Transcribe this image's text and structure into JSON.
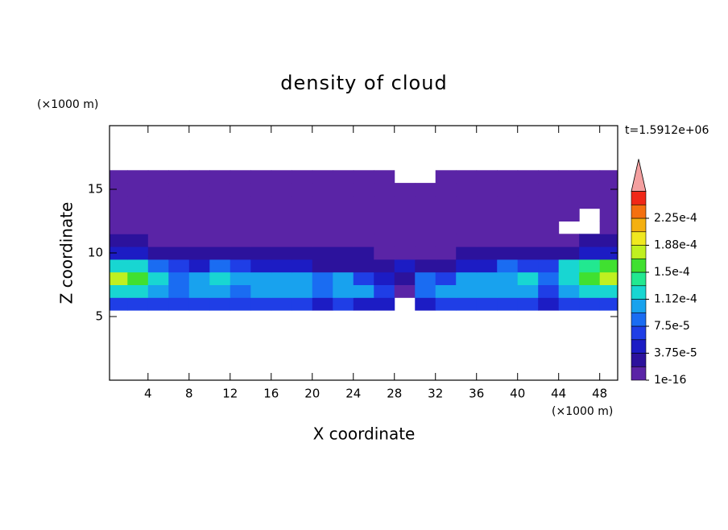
{
  "chart_data": {
    "type": "contour",
    "title": "density of cloud",
    "xlabel": "X coordinate",
    "ylabel": "Z coordinate",
    "x_unit": "(×1000 m)",
    "y_unit": "(×1000 m)",
    "annotation": "t=1.5912e+06",
    "xlim": [
      0.25,
      49.75
    ],
    "ylim": [
      0,
      20
    ],
    "xticks": [
      4,
      8,
      12,
      16,
      20,
      24,
      28,
      32,
      36,
      40,
      44,
      48
    ],
    "yticks": [
      5,
      10,
      15
    ],
    "x": [
      1,
      3,
      5,
      7,
      9,
      11,
      13,
      15,
      17,
      19,
      21,
      23,
      25,
      27,
      29,
      31,
      33,
      35,
      37,
      39,
      41,
      43,
      45,
      47,
      49
    ],
    "y": [
      6,
      7,
      8,
      9,
      10,
      11,
      12,
      13,
      14,
      15,
      16
    ],
    "z": [
      [
        7e-05,
        7e-05,
        6e-05,
        6e-05,
        6e-05,
        6e-05,
        6e-05,
        6e-05,
        6e-05,
        6e-05,
        5e-05,
        6e-05,
        5e-05,
        5e-05,
        null,
        5e-05,
        6e-05,
        6e-05,
        6e-05,
        6e-05,
        6e-05,
        5e-05,
        6e-05,
        7e-05,
        7e-05
      ],
      [
        0.00013,
        0.00012,
        0.0001,
        8e-05,
        0.0001,
        0.00011,
        9e-05,
        0.0001,
        0.00011,
        0.0001,
        9e-05,
        0.00011,
        0.0001,
        7e-05,
        1e-05,
        9e-05,
        0.0001,
        0.00011,
        0.0001,
        0.0001,
        0.00011,
        6e-05,
        0.00011,
        0.00012,
        0.00012
      ],
      [
        0.00017,
        0.00015,
        0.00012,
        9e-05,
        0.00011,
        0.00012,
        0.0001,
        0.00011,
        0.00011,
        0.0001,
        9e-05,
        0.0001,
        6e-05,
        5e-05,
        3e-05,
        8e-05,
        7e-05,
        0.0001,
        0.00011,
        0.00011,
        0.00012,
        8e-05,
        0.00013,
        0.00016,
        0.00017
      ],
      [
        0.00013,
        0.00012,
        8e-05,
        6e-05,
        5e-05,
        9e-05,
        6e-05,
        5e-05,
        4e-05,
        4e-05,
        3e-05,
        3e-05,
        3e-05,
        3e-05,
        4e-05,
        3e-05,
        3e-05,
        4e-05,
        5e-05,
        8e-05,
        6e-05,
        7e-05,
        0.00012,
        0.00014,
        0.00015
      ],
      [
        4e-05,
        4e-05,
        3e-05,
        3e-05,
        3e-05,
        3e-05,
        3e-05,
        3e-05,
        3e-05,
        3e-05,
        3e-05,
        3e-05,
        3e-05,
        1.5e-05,
        1.5e-05,
        1.5e-05,
        1.5e-05,
        3e-05,
        3e-05,
        3e-05,
        3e-05,
        3e-05,
        3e-05,
        4e-05,
        4e-05
      ],
      [
        2.5e-05,
        2.5e-05,
        1.5e-05,
        1.5e-05,
        1.5e-05,
        1.5e-05,
        1.5e-05,
        1.5e-05,
        1.5e-05,
        1.5e-05,
        1.5e-05,
        1.5e-05,
        1.5e-05,
        1.5e-05,
        1.5e-05,
        1.5e-05,
        1.5e-05,
        1.5e-05,
        1.5e-05,
        1.5e-05,
        1.5e-05,
        1.5e-05,
        1.5e-05,
        2.5e-05,
        2.5e-05
      ],
      [
        1.5e-05,
        1.5e-05,
        1.5e-05,
        1.5e-05,
        1.5e-05,
        1.5e-05,
        1.5e-05,
        1.5e-05,
        1.5e-05,
        1.5e-05,
        1.5e-05,
        1.5e-05,
        1.5e-05,
        1.5e-05,
        1.5e-05,
        1.5e-05,
        1.5e-05,
        1.5e-05,
        1.5e-05,
        1.5e-05,
        1.5e-05,
        1.5e-05,
        null,
        null,
        1.5e-05
      ],
      [
        1.5e-05,
        1.5e-05,
        1.5e-05,
        1.5e-05,
        1.5e-05,
        1.5e-05,
        1.5e-05,
        1.5e-05,
        1.5e-05,
        1.5e-05,
        1.5e-05,
        1.5e-05,
        1.5e-05,
        1.5e-05,
        1.5e-05,
        1.5e-05,
        1.5e-05,
        1.5e-05,
        1.5e-05,
        1.5e-05,
        1.5e-05,
        1.5e-05,
        1.5e-05,
        null,
        1.5e-05
      ],
      [
        1e-05,
        1e-05,
        1e-05,
        1e-05,
        1e-05,
        1e-05,
        1e-05,
        1e-05,
        1e-05,
        1e-05,
        1e-05,
        1e-05,
        1e-05,
        1e-05,
        1e-05,
        1e-05,
        1e-05,
        1e-05,
        1e-05,
        1e-05,
        1e-05,
        1e-05,
        1e-05,
        1e-05,
        1e-05
      ],
      [
        1e-05,
        1e-05,
        1e-05,
        1e-05,
        1e-05,
        1e-05,
        1e-05,
        1e-05,
        1e-05,
        1e-05,
        1e-05,
        1e-05,
        1e-05,
        1e-05,
        1e-05,
        1e-05,
        1e-05,
        1e-05,
        1e-05,
        1e-05,
        1e-05,
        1e-05,
        1e-05,
        1e-05,
        1e-05
      ],
      [
        5e-06,
        5e-06,
        5e-06,
        5e-06,
        5e-06,
        5e-06,
        5e-06,
        5e-06,
        5e-06,
        5e-06,
        5e-06,
        5e-06,
        5e-06,
        5e-06,
        null,
        null,
        5e-06,
        5e-06,
        5e-06,
        5e-06,
        5e-06,
        5e-06,
        5e-06,
        5e-06,
        5e-06
      ]
    ],
    "levels": [
      {
        "value": 1e-16,
        "label": "1e-16"
      },
      1.875e-05,
      {
        "value": 3.75e-05,
        "label": "3.75e-5"
      },
      5.625e-05,
      {
        "value": 7.5e-05,
        "label": "7.5e-5"
      },
      9.375e-05,
      {
        "value": 0.0001125,
        "label": "1.12e-4"
      },
      0.00013125,
      {
        "value": 0.00015,
        "label": "1.5e-4"
      },
      0.00016875,
      {
        "value": 0.0001875,
        "label": "1.88e-4"
      },
      0.00020625,
      {
        "value": 0.000225,
        "label": "2.25e-4"
      },
      0.00024375
    ],
    "colors": [
      "#5a24a6",
      "#2c129c",
      "#1c1cc4",
      "#1f3ee6",
      "#1a6cf2",
      "#18a2ee",
      "#18d6d2",
      "#22e890",
      "#40e030",
      "#c0f020",
      "#f0e820",
      "#f4b010",
      "#f47010",
      "#f02818",
      "#f4a0a0"
    ]
  }
}
